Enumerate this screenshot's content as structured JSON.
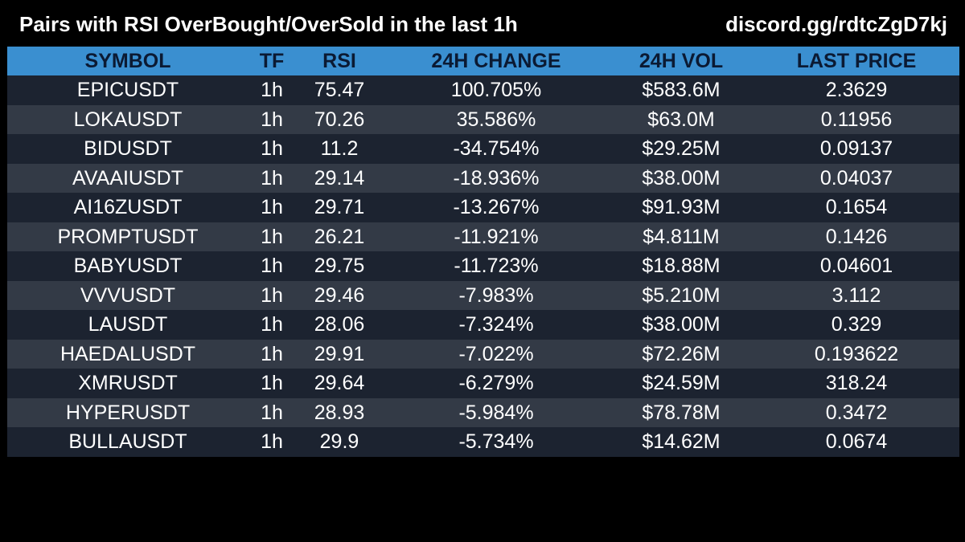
{
  "header": {
    "title": "Pairs with RSI OverBought/OverSold in the last 1h",
    "link": "discord.gg/rdtcZgD7kj"
  },
  "table": {
    "columns": [
      "SYMBOL",
      "TF",
      "RSI",
      "24H CHANGE",
      "24H VOL",
      "LAST PRICE"
    ],
    "rows": [
      [
        "EPICUSDT",
        "1h",
        "75.47",
        "100.705%",
        "$583.6M",
        "2.3629"
      ],
      [
        "LOKAUSDT",
        "1h",
        "70.26",
        "35.586%",
        "$63.0M",
        "0.11956"
      ],
      [
        "BIDUSDT",
        "1h",
        "11.2",
        "-34.754%",
        "$29.25M",
        "0.09137"
      ],
      [
        "AVAAIUSDT",
        "1h",
        "29.14",
        "-18.936%",
        "$38.00M",
        "0.04037"
      ],
      [
        "AI16ZUSDT",
        "1h",
        "29.71",
        "-13.267%",
        "$91.93M",
        "0.1654"
      ],
      [
        "PROMPTUSDT",
        "1h",
        "26.21",
        "-11.921%",
        "$4.811M",
        "0.1426"
      ],
      [
        "BABYUSDT",
        "1h",
        "29.75",
        "-11.723%",
        "$18.88M",
        "0.04601"
      ],
      [
        "VVVUSDT",
        "1h",
        "29.46",
        "-7.983%",
        "$5.210M",
        "3.112"
      ],
      [
        "LAUSDT",
        "1h",
        "28.06",
        "-7.324%",
        "$38.00M",
        "0.329"
      ],
      [
        "HAEDALUSDT",
        "1h",
        "29.91",
        "-7.022%",
        "$72.26M",
        "0.193622"
      ],
      [
        "XMRUSDT",
        "1h",
        "29.64",
        "-6.279%",
        "$24.59M",
        "318.24"
      ],
      [
        "HYPERUSDT",
        "1h",
        "28.93",
        "-5.984%",
        "$78.78M",
        "0.3472"
      ],
      [
        "BULLAUSDT",
        "1h",
        "29.9",
        "-5.734%",
        "$14.62M",
        "0.0674"
      ]
    ]
  },
  "colors": {
    "background": "#000000",
    "header_row": "#3a8fd0",
    "header_text": "#0b1a33",
    "row_dark": "#1c2330",
    "row_light": "#333a46",
    "text": "#ffffff"
  }
}
